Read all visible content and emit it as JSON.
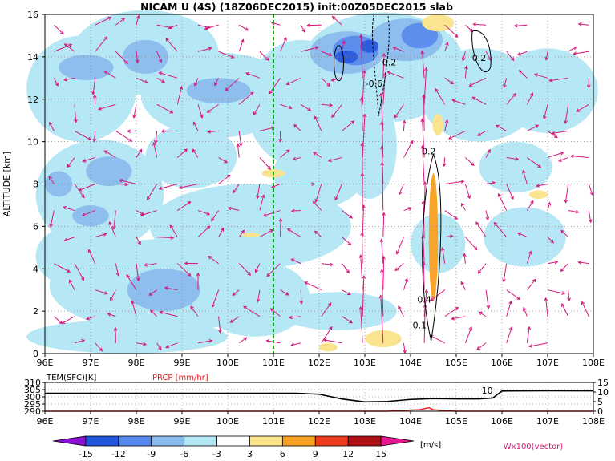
{
  "title": "NICAM U (4S) (18Z06DEC2015) init:00Z05DEC2015 slab",
  "colors": {
    "neg15": "#8a10d6",
    "neg12": "#2255dd",
    "neg9": "#5588ee",
    "neg6": "#88bbee",
    "neg3": "#b3e6f5",
    "zero": "#ffffff",
    "pos3": "#fbe38a",
    "pos6": "#f8a020",
    "pos9": "#ef3c1e",
    "pos12": "#b00f14",
    "pos15": "#e8178f",
    "vector": "#d4197a",
    "precip": "#e02020",
    "marker": "#00b300"
  },
  "chart_data": [
    {
      "type": "heatmap",
      "title": "NICAM U (4S) (18Z06DEC2015) init:00Z05DEC2015 slab",
      "ylabel": "ALTITUDE [km]",
      "xlim": [
        96,
        108
      ],
      "ylim": [
        0,
        16
      ],
      "x_ticks": [
        "96E",
        "97E",
        "98E",
        "99E",
        "100E",
        "101E",
        "102E",
        "103E",
        "104E",
        "105E",
        "106E",
        "107E",
        "108E"
      ],
      "y_ticks": [
        "0",
        "2",
        "4",
        "6",
        "8",
        "10",
        "12",
        "14",
        "16"
      ],
      "marker_longitude": 101,
      "grid": true,
      "contour_labels": [
        {
          "text": "-0.2",
          "x": 103.5,
          "y": 13.6
        },
        {
          "text": "-0.6",
          "x": 103.2,
          "y": 12.6
        },
        {
          "text": "0.2",
          "x": 105.5,
          "y": 13.8
        },
        {
          "text": "0.2",
          "x": 104.4,
          "y": 9.4
        },
        {
          "text": "0.4",
          "x": 104.3,
          "y": 2.4
        },
        {
          "text": "0.1",
          "x": 104.2,
          "y": 1.2
        }
      ],
      "vector_label": "Wx100(vector)"
    },
    {
      "type": "line",
      "series": [
        {
          "name": "TEM(SFC)[K]",
          "x": [
            96,
            101.5,
            102,
            102.5,
            103,
            103.5,
            104,
            104.5,
            105,
            105.5,
            105.8,
            106,
            107,
            108
          ],
          "values": [
            302.5,
            302.5,
            301.8,
            298.5,
            296.5,
            296.8,
            298.2,
            298.8,
            298.6,
            298.6,
            299.2,
            304,
            304.2,
            304.1
          ]
        },
        {
          "name": "PRCP [mm/hr]",
          "x": [
            96,
            103.5,
            103.8,
            104.2,
            104.4,
            104.5,
            104.7,
            105,
            108
          ],
          "values": [
            0,
            0,
            0.4,
            0.8,
            1.8,
            0.8,
            0.4,
            0,
            0
          ]
        }
      ],
      "xlim": [
        96,
        108
      ],
      "y_left_ticks": [
        "290",
        "295",
        "300",
        "305",
        "310"
      ],
      "y_right_ticks": [
        "0",
        "5",
        "10",
        "15"
      ],
      "x_ticks": [
        "96E",
        "97E",
        "98E",
        "99E",
        "100E",
        "101E",
        "102E",
        "103E",
        "104E",
        "105E",
        "106E",
        "107E",
        "108E"
      ],
      "annotation": "10"
    }
  ],
  "colorbar": {
    "labels": [
      "-15",
      "-12",
      "-9",
      "-6",
      "-3",
      "3",
      "6",
      "9",
      "12",
      "15"
    ],
    "unit": "[m/s]"
  }
}
